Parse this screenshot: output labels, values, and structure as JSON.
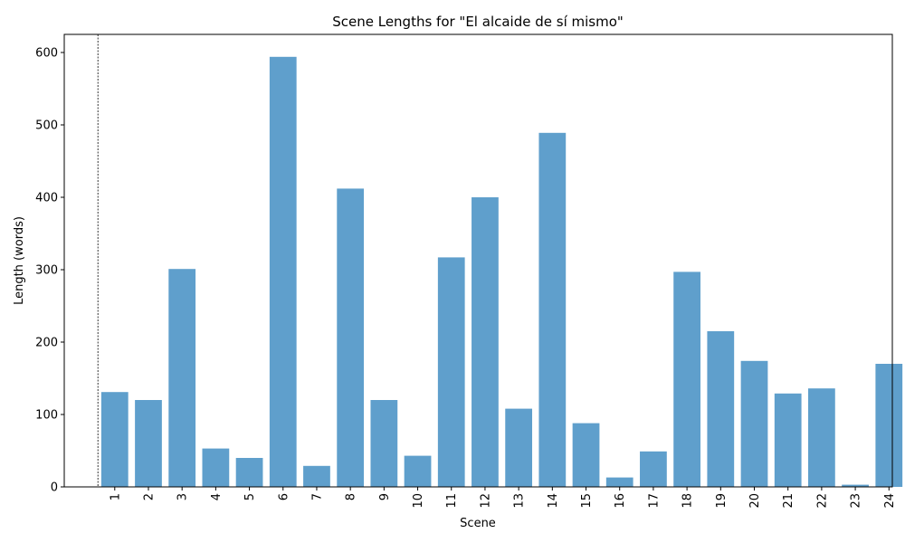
{
  "chart_data": {
    "type": "bar",
    "title": "Scene Lengths for \"El alcaide de sí mismo\"",
    "xlabel": "Scene",
    "ylabel": "Length (words)",
    "categories": [
      "1",
      "2",
      "3",
      "4",
      "5",
      "6",
      "7",
      "8",
      "9",
      "10",
      "11",
      "12",
      "13",
      "14",
      "15",
      "16",
      "17",
      "18",
      "19",
      "20",
      "21",
      "22",
      "23",
      "24"
    ],
    "values": [
      131,
      120,
      301,
      53,
      40,
      594,
      29,
      412,
      120,
      43,
      317,
      400,
      108,
      489,
      88,
      13,
      49,
      297,
      215,
      174,
      129,
      136,
      3,
      170
    ],
    "yticks": [
      0,
      100,
      200,
      300,
      400,
      500,
      600
    ],
    "ylim": [
      0,
      625
    ],
    "bar_color": "#5f9fcc",
    "reference_line_x": 0.5
  }
}
